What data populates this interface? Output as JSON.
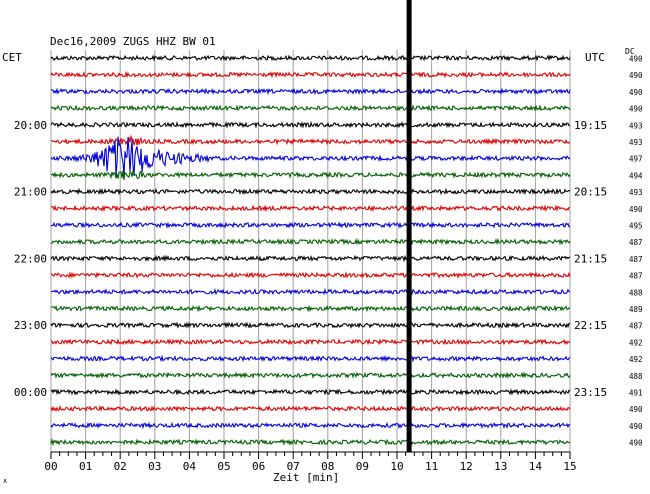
{
  "header": {
    "title": "Dec16,2009   ZUGS HHZ BW 01",
    "left_timezone": "CET",
    "right_timezone": "UTC",
    "dc_label": "DC"
  },
  "footer": {
    "corner_mark": "∧"
  },
  "colors": {
    "traces": [
      "#000000",
      "#e00000",
      "#0000e0",
      "#006000"
    ],
    "grid": "#a0a0a0",
    "gap_bar": "#000000"
  },
  "chart_data": {
    "type": "line",
    "title": "Dec16,2009   ZUGS HHZ BW 01",
    "xlabel": "Zeit [min]",
    "ylabel": "",
    "xlim": [
      0,
      15
    ],
    "x_ticks": [
      "00",
      "01",
      "02",
      "03",
      "04",
      "05",
      "06",
      "07",
      "08",
      "09",
      "10",
      "11",
      "12",
      "13",
      "14",
      "15"
    ],
    "grid": true,
    "trace_count": 24,
    "minutes_per_trace": 15,
    "left_time_labels": [
      {
        "trace": 4,
        "label": "20:00"
      },
      {
        "trace": 8,
        "label": "21:00"
      },
      {
        "trace": 12,
        "label": "22:00"
      },
      {
        "trace": 16,
        "label": "23:00"
      },
      {
        "trace": 20,
        "label": "00:00"
      }
    ],
    "right_time_labels": [
      {
        "trace": 4,
        "label": "19:15"
      },
      {
        "trace": 8,
        "label": "20:15"
      },
      {
        "trace": 12,
        "label": "21:15"
      },
      {
        "trace": 16,
        "label": "22:15"
      },
      {
        "trace": 20,
        "label": "23:15"
      }
    ],
    "dc_offsets": [
      490,
      490,
      490,
      490,
      493,
      493,
      497,
      494,
      493,
      490,
      495,
      487,
      487,
      487,
      488,
      489,
      487,
      492,
      492,
      488,
      491,
      490,
      490,
      490
    ],
    "event": {
      "trace": 6,
      "start_min": 0.4,
      "peak_min": 2.2,
      "end_min": 4.6
    },
    "data_gap_min": 10.35
  }
}
